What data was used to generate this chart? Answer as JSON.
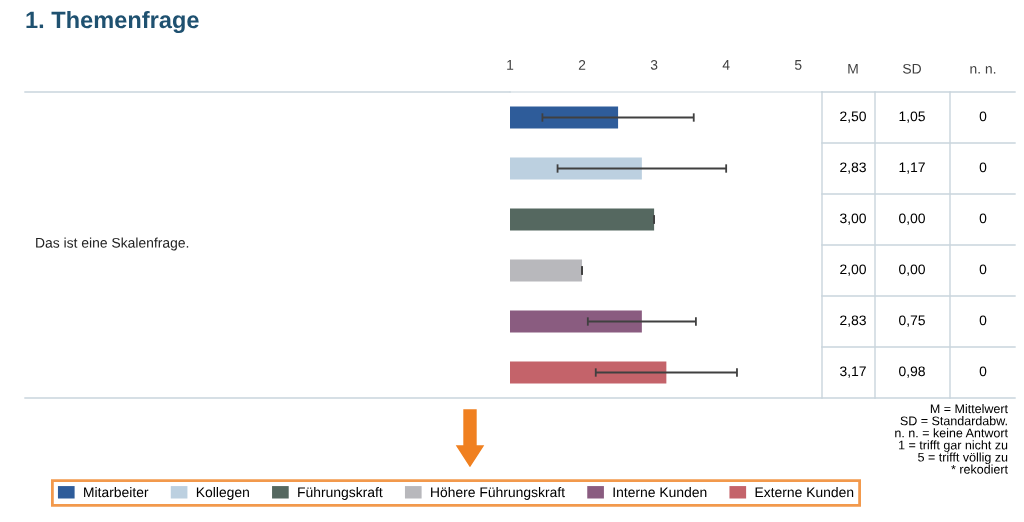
{
  "chart_data": {
    "type": "bar",
    "orientation": "horizontal",
    "title": "1. Themenfrage",
    "categories": [
      null
    ],
    "series": [
      {
        "name": "Mitarbeiter",
        "color": "#2e5c9a",
        "values": [
          2.5
        ],
        "errors": [
          1.05
        ]
      },
      {
        "name": "Kollegen",
        "color": "#bcd0e0",
        "values": [
          2.83
        ],
        "errors": [
          1.17
        ]
      },
      {
        "name": "Führungskraft",
        "color": "#556860",
        "values": [
          3.0
        ],
        "errors": [
          0.0
        ]
      },
      {
        "name": "Höhere Führungskraft",
        "color": "#b8b8bc",
        "values": [
          2.0
        ],
        "errors": [
          0.0
        ]
      },
      {
        "name": "Interne Kunden",
        "color": "#8a5c80",
        "values": [
          2.83
        ],
        "errors": [
          0.75
        ]
      },
      {
        "name": "Externe Kunden",
        "color": "#c4636a",
        "values": [
          3.17
        ],
        "errors": [
          0.98
        ]
      }
    ],
    "xlim": [
      1,
      5.33
    ],
    "xticks": [
      1,
      2,
      3,
      4,
      5
    ],
    "legend": "bottom",
    "grid": false,
    "annotations": [
      "M",
      "SD",
      "n. n.",
      "2,50",
      "1,05",
      "0",
      "2,83",
      "1,17",
      "0",
      "3,00",
      "0,00",
      "0",
      "2,00",
      "0,00",
      "0",
      "2,83",
      "0,75",
      "0",
      "3,17",
      "0,98",
      "0",
      "Das ist eine Skalenfrage.",
      "M = Mittelwert\nSD = Standardabw.\nn. n. = keine Antwort\n1 = trifft gar nicht zu\n5 = trifft völlig zu\n* rekodiert"
    ]
  }
}
